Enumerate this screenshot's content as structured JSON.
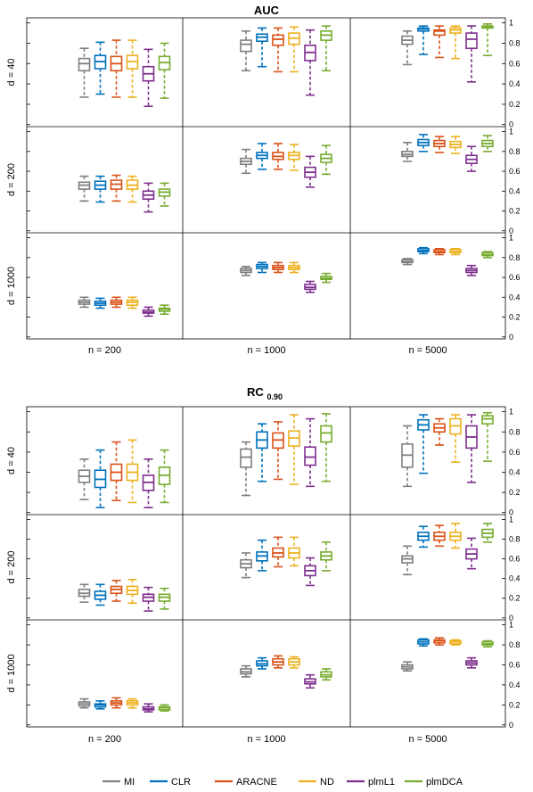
{
  "colors": {
    "MI": "#7f7f7f",
    "CLR": "#0072bd",
    "ARACNE": "#d95319",
    "ND": "#edb120",
    "plmL1": "#7e2f8e",
    "plmDCA": "#77ac30"
  },
  "legend": [
    "MI",
    "CLR",
    "ARACNE",
    "ND",
    "plmL1",
    "plmDCA"
  ],
  "chart_data": [
    {
      "type": "box",
      "title": "AUC",
      "title_sub": "",
      "columns": [
        "n = 200",
        "n = 1000",
        "n = 5000"
      ],
      "rows": [
        "d = 40",
        "d = 200",
        "d = 1000"
      ],
      "yticks": [
        "0",
        "0.2",
        "0.4",
        "0.6",
        "0.8",
        "1"
      ],
      "ylim": [
        -0.02,
        1.05
      ],
      "series": [
        "MI",
        "CLR",
        "ARACNE",
        "ND",
        "plmL1",
        "plmDCA"
      ],
      "boxes": [
        [
          [
            [
              0.27,
              0.53,
              0.6,
              0.65,
              0.75
            ],
            [
              0.3,
              0.55,
              0.62,
              0.68,
              0.81
            ],
            [
              0.27,
              0.53,
              0.6,
              0.67,
              0.83
            ],
            [
              0.27,
              0.55,
              0.62,
              0.68,
              0.83
            ],
            [
              0.18,
              0.43,
              0.5,
              0.57,
              0.74
            ],
            [
              0.26,
              0.54,
              0.61,
              0.67,
              0.8
            ]
          ],
          [
            [
              0.53,
              0.72,
              0.79,
              0.83,
              0.92
            ],
            [
              0.57,
              0.82,
              0.86,
              0.89,
              0.95
            ],
            [
              0.52,
              0.78,
              0.84,
              0.88,
              0.95
            ],
            [
              0.52,
              0.79,
              0.85,
              0.9,
              0.96
            ],
            [
              0.29,
              0.63,
              0.71,
              0.78,
              0.93
            ],
            [
              0.53,
              0.83,
              0.88,
              0.92,
              0.97
            ]
          ],
          [
            [
              0.59,
              0.79,
              0.83,
              0.87,
              0.92
            ],
            [
              0.69,
              0.92,
              0.94,
              0.95,
              0.97
            ],
            [
              0.66,
              0.88,
              0.92,
              0.93,
              0.97
            ],
            [
              0.65,
              0.9,
              0.93,
              0.95,
              0.97
            ],
            [
              0.42,
              0.75,
              0.84,
              0.9,
              0.97
            ],
            [
              0.68,
              0.95,
              0.96,
              0.97,
              0.99
            ]
          ]
        ],
        [
          [
            [
              0.3,
              0.42,
              0.46,
              0.49,
              0.55
            ],
            [
              0.29,
              0.42,
              0.46,
              0.5,
              0.55
            ],
            [
              0.3,
              0.42,
              0.47,
              0.51,
              0.56
            ],
            [
              0.29,
              0.42,
              0.46,
              0.51,
              0.55
            ],
            [
              0.19,
              0.32,
              0.36,
              0.4,
              0.48
            ],
            [
              0.25,
              0.35,
              0.39,
              0.42,
              0.48
            ]
          ],
          [
            [
              0.58,
              0.67,
              0.7,
              0.73,
              0.82
            ],
            [
              0.62,
              0.73,
              0.76,
              0.79,
              0.88
            ],
            [
              0.62,
              0.72,
              0.75,
              0.79,
              0.88
            ],
            [
              0.61,
              0.72,
              0.76,
              0.79,
              0.87
            ],
            [
              0.44,
              0.54,
              0.59,
              0.64,
              0.75
            ],
            [
              0.57,
              0.69,
              0.73,
              0.77,
              0.86
            ]
          ],
          [
            [
              0.7,
              0.75,
              0.77,
              0.8,
              0.89
            ],
            [
              0.8,
              0.86,
              0.89,
              0.92,
              0.97
            ],
            [
              0.79,
              0.85,
              0.88,
              0.91,
              0.95
            ],
            [
              0.78,
              0.84,
              0.87,
              0.9,
              0.95
            ],
            [
              0.6,
              0.68,
              0.72,
              0.76,
              0.85
            ],
            [
              0.8,
              0.85,
              0.88,
              0.91,
              0.96
            ]
          ]
        ],
        [
          [
            [
              0.3,
              0.33,
              0.35,
              0.37,
              0.4
            ],
            [
              0.29,
              0.32,
              0.34,
              0.36,
              0.39
            ],
            [
              0.3,
              0.33,
              0.35,
              0.37,
              0.4
            ],
            [
              0.29,
              0.32,
              0.35,
              0.37,
              0.4
            ],
            [
              0.21,
              0.24,
              0.25,
              0.27,
              0.3
            ],
            [
              0.23,
              0.26,
              0.28,
              0.29,
              0.32
            ]
          ],
          [
            [
              0.62,
              0.65,
              0.67,
              0.69,
              0.71
            ],
            [
              0.65,
              0.69,
              0.71,
              0.73,
              0.75
            ],
            [
              0.65,
              0.68,
              0.7,
              0.72,
              0.75
            ],
            [
              0.65,
              0.68,
              0.7,
              0.72,
              0.75
            ],
            [
              0.45,
              0.48,
              0.5,
              0.53,
              0.56
            ],
            [
              0.55,
              0.58,
              0.59,
              0.61,
              0.64
            ]
          ],
          [
            [
              0.73,
              0.75,
              0.76,
              0.78,
              0.79
            ],
            [
              0.84,
              0.86,
              0.87,
              0.89,
              0.9
            ],
            [
              0.83,
              0.85,
              0.86,
              0.88,
              0.89
            ],
            [
              0.83,
              0.85,
              0.86,
              0.88,
              0.89
            ],
            [
              0.62,
              0.65,
              0.67,
              0.69,
              0.72
            ],
            [
              0.8,
              0.82,
              0.83,
              0.85,
              0.86
            ]
          ]
        ]
      ]
    },
    {
      "type": "box",
      "title": "RC",
      "title_sub": "0.90",
      "columns": [
        "n = 200",
        "n = 1000",
        "n = 5000"
      ],
      "rows": [
        "d = 40",
        "d = 200",
        "d = 1000"
      ],
      "yticks": [
        "0",
        "0.2",
        "0.4",
        "0.6",
        "0.8",
        "1"
      ],
      "ylim": [
        -0.02,
        1.05
      ],
      "series": [
        "MI",
        "CLR",
        "ARACNE",
        "ND",
        "plmL1",
        "plmDCA"
      ],
      "boxes": [
        [
          [
            [
              0.13,
              0.3,
              0.36,
              0.42,
              0.53
            ],
            [
              0.05,
              0.25,
              0.33,
              0.42,
              0.62
            ],
            [
              0.12,
              0.32,
              0.4,
              0.48,
              0.7
            ],
            [
              0.1,
              0.32,
              0.4,
              0.48,
              0.72
            ],
            [
              0.05,
              0.22,
              0.3,
              0.37,
              0.53
            ],
            [
              0.1,
              0.28,
              0.37,
              0.45,
              0.62
            ]
          ],
          [
            [
              0.17,
              0.45,
              0.55,
              0.63,
              0.7
            ],
            [
              0.31,
              0.64,
              0.72,
              0.8,
              0.88
            ],
            [
              0.33,
              0.64,
              0.72,
              0.79,
              0.9
            ],
            [
              0.28,
              0.66,
              0.74,
              0.81,
              0.97
            ],
            [
              0.26,
              0.47,
              0.55,
              0.65,
              0.93
            ],
            [
              0.31,
              0.7,
              0.79,
              0.86,
              0.98
            ]
          ],
          [
            [
              0.26,
              0.45,
              0.57,
              0.68,
              0.86
            ],
            [
              0.39,
              0.82,
              0.87,
              0.92,
              0.97
            ],
            [
              0.67,
              0.8,
              0.84,
              0.88,
              0.93
            ],
            [
              0.5,
              0.78,
              0.86,
              0.93,
              0.97
            ],
            [
              0.3,
              0.64,
              0.75,
              0.86,
              0.97
            ],
            [
              0.51,
              0.88,
              0.93,
              0.96,
              0.99
            ]
          ]
        ],
        [
          [
            [
              0.16,
              0.22,
              0.25,
              0.29,
              0.34
            ],
            [
              0.13,
              0.19,
              0.23,
              0.27,
              0.34
            ],
            [
              0.17,
              0.25,
              0.29,
              0.32,
              0.38
            ],
            [
              0.15,
              0.24,
              0.28,
              0.32,
              0.39
            ],
            [
              0.07,
              0.17,
              0.21,
              0.24,
              0.31
            ],
            [
              0.09,
              0.17,
              0.21,
              0.24,
              0.3
            ]
          ],
          [
            [
              0.41,
              0.51,
              0.55,
              0.59,
              0.66
            ],
            [
              0.48,
              0.58,
              0.63,
              0.67,
              0.79
            ],
            [
              0.52,
              0.62,
              0.66,
              0.71,
              0.82
            ],
            [
              0.53,
              0.61,
              0.66,
              0.71,
              0.82
            ],
            [
              0.33,
              0.43,
              0.48,
              0.53,
              0.61
            ],
            [
              0.48,
              0.59,
              0.63,
              0.67,
              0.77
            ]
          ],
          [
            [
              0.44,
              0.56,
              0.6,
              0.63,
              0.73
            ],
            [
              0.72,
              0.79,
              0.83,
              0.87,
              0.93
            ],
            [
              0.73,
              0.79,
              0.83,
              0.87,
              0.94
            ],
            [
              0.71,
              0.79,
              0.83,
              0.87,
              0.96
            ],
            [
              0.5,
              0.6,
              0.65,
              0.7,
              0.81
            ],
            [
              0.77,
              0.82,
              0.86,
              0.9,
              0.96
            ]
          ]
        ],
        [
          [
            [
              0.17,
              0.19,
              0.21,
              0.23,
              0.26
            ],
            [
              0.16,
              0.18,
              0.2,
              0.21,
              0.24
            ],
            [
              0.17,
              0.2,
              0.22,
              0.24,
              0.27
            ],
            [
              0.17,
              0.2,
              0.22,
              0.24,
              0.26
            ],
            [
              0.13,
              0.15,
              0.16,
              0.18,
              0.21
            ],
            [
              0.14,
              0.15,
              0.17,
              0.18,
              0.2
            ]
          ],
          [
            [
              0.48,
              0.51,
              0.53,
              0.56,
              0.59
            ],
            [
              0.56,
              0.59,
              0.61,
              0.64,
              0.67
            ],
            [
              0.57,
              0.6,
              0.63,
              0.66,
              0.69
            ],
            [
              0.57,
              0.6,
              0.63,
              0.66,
              0.68
            ],
            [
              0.37,
              0.41,
              0.43,
              0.46,
              0.5
            ],
            [
              0.45,
              0.48,
              0.5,
              0.53,
              0.56
            ]
          ],
          [
            [
              0.54,
              0.56,
              0.58,
              0.6,
              0.63
            ],
            [
              0.79,
              0.81,
              0.83,
              0.85,
              0.86
            ],
            [
              0.8,
              0.82,
              0.84,
              0.85,
              0.87
            ],
            [
              0.8,
              0.81,
              0.83,
              0.84,
              0.85
            ],
            [
              0.57,
              0.6,
              0.62,
              0.64,
              0.67
            ],
            [
              0.78,
              0.8,
              0.81,
              0.83,
              0.84
            ]
          ]
        ]
      ]
    }
  ]
}
